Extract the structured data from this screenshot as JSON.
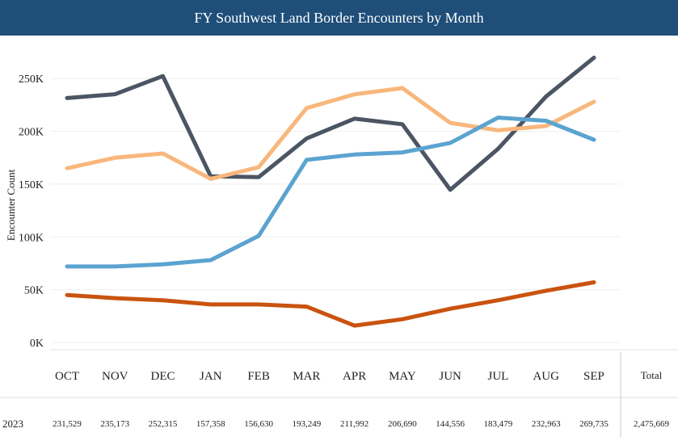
{
  "chart_data": {
    "type": "line",
    "title": "FY Southwest Land Border Encounters by Month",
    "xlabel": "",
    "ylabel": "Encounter Count",
    "categories": [
      "OCT",
      "NOV",
      "DEC",
      "JAN",
      "FEB",
      "MAR",
      "APR",
      "MAY",
      "JUN",
      "JUL",
      "AUG",
      "SEP"
    ],
    "yticks": [
      "0K",
      "50K",
      "100K",
      "150K",
      "200K",
      "250K"
    ],
    "ylim": [
      0,
      280000
    ],
    "grid": true,
    "series": [
      {
        "name": "2023",
        "color": "#4b5563",
        "values": [
          231529,
          235173,
          252315,
          157358,
          156630,
          193249,
          211992,
          206690,
          144556,
          183479,
          232963,
          269735
        ]
      },
      {
        "name": "light orange series",
        "color": "#f8b77c",
        "values": [
          165000,
          175000,
          179000,
          155000,
          166000,
          222000,
          235000,
          241000,
          208000,
          201000,
          205000,
          228000
        ]
      },
      {
        "name": "blue series",
        "color": "#5ba3d0",
        "values": [
          72000,
          72000,
          74000,
          78000,
          101000,
          173000,
          178000,
          180000,
          189000,
          213000,
          210000,
          192000
        ]
      },
      {
        "name": "dark orange series",
        "color": "#c9530f",
        "values": [
          45000,
          42000,
          40000,
          36000,
          36000,
          34000,
          16000,
          22000,
          32000,
          40000,
          49000,
          57000
        ]
      }
    ],
    "table": {
      "row_label": "2023",
      "values": [
        "231,529",
        "235,173",
        "252,315",
        "157,358",
        "156,630",
        "193,249",
        "211,992",
        "206,690",
        "144,556",
        "183,479",
        "232,963",
        "269,735"
      ],
      "total_header": "Total",
      "total": "2,475,669"
    }
  }
}
